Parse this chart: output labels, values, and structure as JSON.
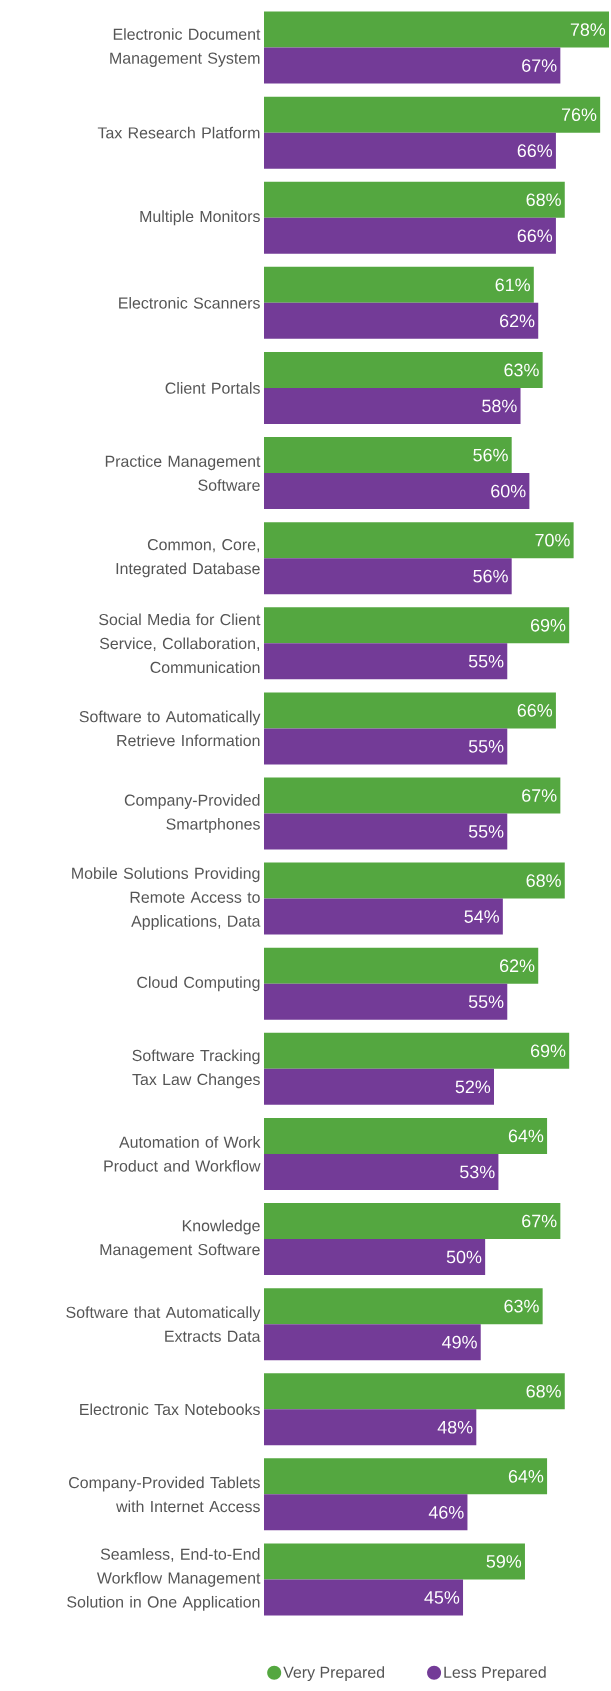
{
  "chart_data": {
    "type": "bar",
    "orientation": "horizontal",
    "legend": "bottom",
    "categories": [
      "Electronic Document Management System",
      "Tax Research Platform",
      "Multiple Monitors",
      "Electronic Scanners",
      "Client Portals",
      "Practice Management Software",
      "Common, Core, Integrated Database",
      "Social Media for Client Service, Collaboration, Communication",
      "Software to Automatically Retrieve Information",
      "Company-Provided Smartphones",
      "Mobile Solutions Providing Remote Access to Applications, Data",
      "Cloud Computing",
      "Software Tracking Tax Law Changes",
      "Automation of Work Product and Workflow",
      "Knowledge Management Software",
      "Software that Automatically Extracts Data",
      "Electronic Tax Notebooks",
      "Company-Provided Tablets with Internet Access",
      "Seamless, End-to-End Workflow Management Solution in One Application"
    ],
    "series": [
      {
        "name": "Very Prepared",
        "color": "#54a740",
        "values": [
          78,
          76,
          68,
          61,
          63,
          56,
          70,
          69,
          66,
          67,
          68,
          62,
          69,
          64,
          67,
          63,
          68,
          64,
          59
        ],
        "value_labels": [
          "78%",
          "76%",
          "68%",
          "61%",
          "63%",
          "56%",
          "70%",
          "69%",
          "66%",
          "67%",
          "68%",
          "62%",
          "69%",
          "64%",
          "67%",
          "63%",
          "68%",
          "64%",
          "59%"
        ]
      },
      {
        "name": "Less Prepared",
        "color": "#733b97",
        "values": [
          67,
          66,
          66,
          62,
          58,
          60,
          56,
          55,
          55,
          55,
          54,
          55,
          52,
          53,
          50,
          49,
          48,
          46,
          45
        ],
        "value_labels": [
          "67%",
          "66%",
          "66%",
          "62%",
          "58%",
          "60%",
          "56%",
          "55%",
          "55%",
          "55%",
          "54%",
          "55%",
          "52%",
          "53%",
          "50%",
          "49%",
          "48%",
          "46%",
          "45%"
        ]
      }
    ]
  }
}
